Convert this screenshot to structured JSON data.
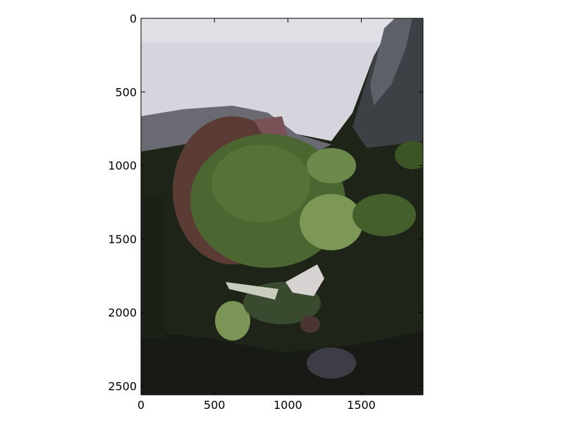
{
  "chart_data": {
    "type": "heatmap",
    "title": "",
    "xlabel": "",
    "ylabel": "",
    "xlim": [
      0,
      1920
    ],
    "ylim": [
      2560,
      0
    ],
    "x_ticks": [
      0,
      500,
      1000,
      1500
    ],
    "y_ticks": [
      0,
      500,
      1000,
      1500,
      2000,
      2500
    ],
    "x_tick_labels": [
      "0",
      "500",
      "1000",
      "1500"
    ],
    "y_tick_labels": [
      "0",
      "500",
      "1000",
      "1500",
      "2000",
      "2500"
    ],
    "grid": false,
    "image_content": "superpixel-segmented photo of a potted leafy plant seen from above",
    "colors": {
      "sky_light": "#d9d8e0",
      "sky_mid": "#c9c8d0",
      "dark_gray": "#595b61",
      "leaf_green": "#4e6a32",
      "leaf_light": "#7f9a58",
      "leaf_dark": "#2e3d22",
      "soil_dark": "#1d2218",
      "pot_red": "#6b4037",
      "white_patch": "#d6d3d2"
    }
  }
}
